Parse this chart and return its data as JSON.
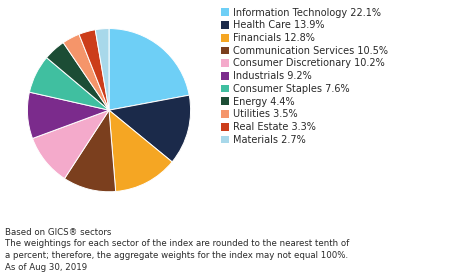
{
  "sectors": [
    "Information Technology",
    "Health Care",
    "Financials",
    "Communication Services",
    "Consumer Discretionary",
    "Industrials",
    "Consumer Staples",
    "Energy",
    "Utilities",
    "Real Estate",
    "Materials"
  ],
  "values": [
    22.1,
    13.9,
    12.8,
    10.5,
    10.2,
    9.2,
    7.6,
    4.4,
    3.5,
    3.3,
    2.7
  ],
  "colors": [
    "#6ECFF6",
    "#1B2A4A",
    "#F5A623",
    "#7B3F1E",
    "#F4AACB",
    "#7B2B8C",
    "#40BFA0",
    "#1C4D35",
    "#F5956A",
    "#CC3D1A",
    "#A8D8EA"
  ],
  "legend_labels": [
    "Information Technology 22.1%",
    "Health Care 13.9%",
    "Financials 12.8%",
    "Communication Services 10.5%",
    "Consumer Discretionary 10.2%",
    "Industrials 9.2%",
    "Consumer Staples 7.6%",
    "Energy 4.4%",
    "Utilities 3.5%",
    "Real Estate 3.3%",
    "Materials 2.7%"
  ],
  "footnote_line1": "Based on GICS® sectors",
  "footnote_line2": "The weightings for each sector of the index are rounded to the nearest tenth of",
  "footnote_line3": "a percent; therefore, the aggregate weights for the index may not equal 100%.",
  "footnote_line4": "As of Aug 30, 2019",
  "bg_color": "#FFFFFF",
  "text_color": "#2a2a2a",
  "legend_fontsize": 7.0,
  "footnote_fontsize": 6.2,
  "pie_startangle": 90,
  "figwidth": 4.74,
  "figheight": 2.72,
  "dpi": 100
}
